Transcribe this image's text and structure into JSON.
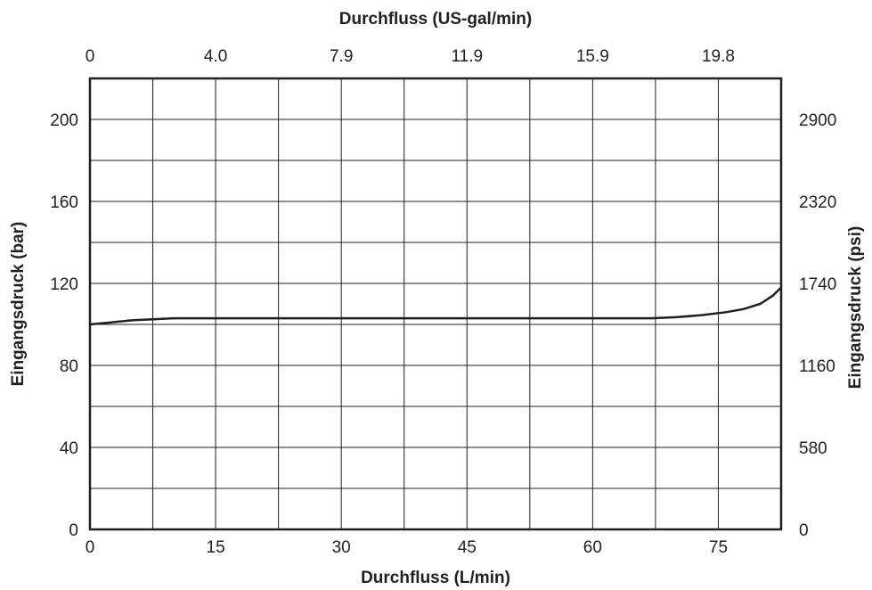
{
  "chart_data": {
    "type": "line",
    "title": "",
    "xlabel": "Durchfluss (L/min)",
    "xlabel_top": "Durchfluss (US-gal/min)",
    "ylabel": "Eingangsdruck (bar)",
    "ylabel_right": "Eingangsdruck (psi)",
    "xlim": [
      0,
      82.5
    ],
    "ylim": [
      0,
      220
    ],
    "grid": true,
    "x_ticks": [
      {
        "value": 0,
        "label": "0"
      },
      {
        "value": 15,
        "label": "15"
      },
      {
        "value": 30,
        "label": "30"
      },
      {
        "value": 45,
        "label": "45"
      },
      {
        "value": 60,
        "label": "60"
      },
      {
        "value": 75,
        "label": "75"
      }
    ],
    "x_ticks_top": [
      {
        "value": 0,
        "label": "0"
      },
      {
        "value": 15,
        "label": "4.0"
      },
      {
        "value": 30,
        "label": "7.9"
      },
      {
        "value": 45,
        "label": "11.9"
      },
      {
        "value": 60,
        "label": "15.9"
      },
      {
        "value": 75,
        "label": "19.8"
      }
    ],
    "y_ticks": [
      {
        "value": 0,
        "label": "0"
      },
      {
        "value": 40,
        "label": "40"
      },
      {
        "value": 80,
        "label": "80"
      },
      {
        "value": 120,
        "label": "120"
      },
      {
        "value": 160,
        "label": "160"
      },
      {
        "value": 200,
        "label": "200"
      }
    ],
    "y_ticks_right": [
      {
        "value": 0,
        "label": "0"
      },
      {
        "value": 40,
        "label": "580"
      },
      {
        "value": 80,
        "label": "1160"
      },
      {
        "value": 120,
        "label": "1740"
      },
      {
        "value": 160,
        "label": "2320"
      },
      {
        "value": 200,
        "label": "2900"
      }
    ],
    "x_grid": [
      0,
      7.5,
      15,
      22.5,
      30,
      37.5,
      45,
      52.5,
      60,
      67.5,
      75,
      82.5
    ],
    "y_grid": [
      0,
      20,
      40,
      60,
      80,
      100,
      120,
      140,
      160,
      180,
      200,
      220
    ],
    "series": [
      {
        "x": [
          0,
          2.5,
          5,
          7.5,
          10,
          20,
          30,
          40,
          50,
          60,
          67,
          70,
          73,
          76,
          78,
          80,
          81.5,
          82.5
        ],
        "y": [
          100,
          101,
          102,
          102.5,
          103,
          103,
          103,
          103,
          103,
          103,
          103,
          103.5,
          104.5,
          106,
          107.5,
          110,
          114,
          118
        ]
      }
    ]
  }
}
